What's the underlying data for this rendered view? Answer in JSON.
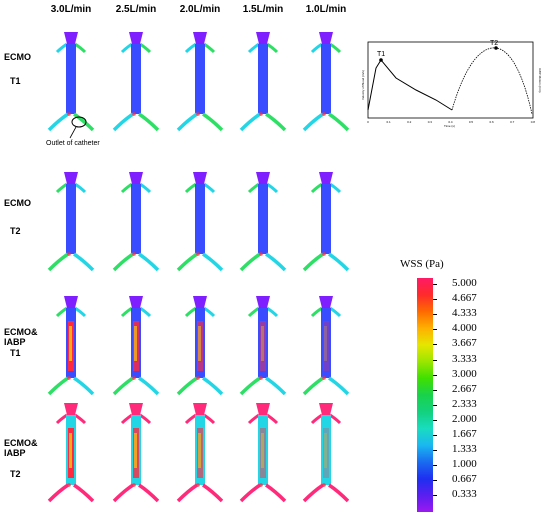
{
  "columns": [
    "3.0L/min",
    "2.5L/min",
    "2.0L/min",
    "1.5L/min",
    "1.0L/min"
  ],
  "rows": [
    {
      "label_line1": "ECMO",
      "label_line2": "T1",
      "label_line3": ""
    },
    {
      "label_line1": "ECMO",
      "label_line2": "T2",
      "label_line3": ""
    },
    {
      "label_line1": "ECMO&",
      "label_line2": "IABP",
      "label_line3": "T1"
    },
    {
      "label_line1": "ECMO&",
      "label_line2": "IABP",
      "label_line3": "T2"
    }
  ],
  "annotation": "Outlet of catheter",
  "velocity_chart": {
    "marker1": "T1",
    "marker2": "T2",
    "ylabel_left": "Velocity of Blood (m/s)",
    "ylabel_right": "IABP Motion (mm)",
    "xlabel": "Time (s)",
    "xticks": [
      "0",
      "0.1",
      "0.2",
      "0.3",
      "0.4",
      "0.5",
      "0.6",
      "0.7",
      "0.8"
    ]
  },
  "colorbar": {
    "title": "WSS (Pa)",
    "ticks": [
      "5.000",
      "4.667",
      "4.333",
      "4.000",
      "3.667",
      "3.333",
      "3.000",
      "2.667",
      "2.333",
      "2.000",
      "1.667",
      "1.333",
      "1.000",
      "0.667",
      "0.333"
    ],
    "colors": [
      "#ff1a66",
      "#ff2a2a",
      "#ff6a00",
      "#ffb000",
      "#e6e600",
      "#9be600",
      "#3fe000",
      "#19d24b",
      "#13d17e",
      "#19dcc0",
      "#1ab8f0",
      "#1a6cf0",
      "#1e2ff0",
      "#5a1ef0",
      "#9b19f0"
    ]
  },
  "colors": {
    "vessel_low": "#7f1fff",
    "vessel_blue": "#3a4cff",
    "branch_green": "#2de065",
    "branch_cyan": "#22d6e6",
    "hot_red": "#ff2a40",
    "pink": "#ff2a7a"
  }
}
